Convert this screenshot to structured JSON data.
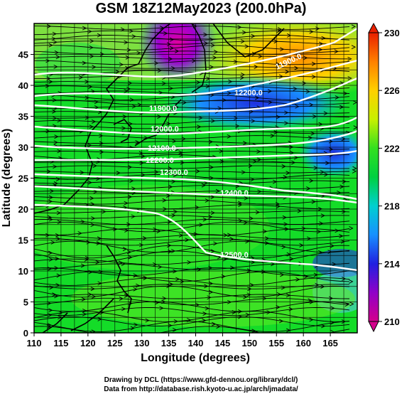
{
  "title": "GSM 18Z12May2023 (200.0hPa)",
  "xlabel": "Longitude (degrees)",
  "ylabel": "Latitude  (degrees)",
  "x_ticks": [
    "110",
    "115",
    "120",
    "125",
    "130",
    "135",
    "140",
    "145",
    "150",
    "155",
    "160",
    "165"
  ],
  "y_ticks": [
    "0",
    "5",
    "10",
    "15",
    "20",
    "25",
    "30",
    "35",
    "40",
    "45"
  ],
  "colorbar": {
    "ticks": [
      "210",
      "214",
      "218",
      "222",
      "226",
      "230"
    ],
    "range": [
      210,
      230
    ],
    "colors": [
      "#d4008c",
      "#9000c8",
      "#2020e0",
      "#1890ff",
      "#00d0d0",
      "#00d040",
      "#33e020",
      "#c8f000",
      "#ffd000",
      "#ff8000",
      "#e82000"
    ]
  },
  "contour_labels": [
    "11900.0",
    "12200.0",
    "11900.0",
    "12000.0",
    "12100.0",
    "12200.0",
    "12300.0",
    "12400.0",
    "12500.0"
  ],
  "credits": {
    "line1": "Drawing by DCL (https://www.gfd-dennou.org/library/dcl/)",
    "line2": "Data from http://database.rish.kyoto-u.ac.jp/arch/jmadata/"
  }
}
